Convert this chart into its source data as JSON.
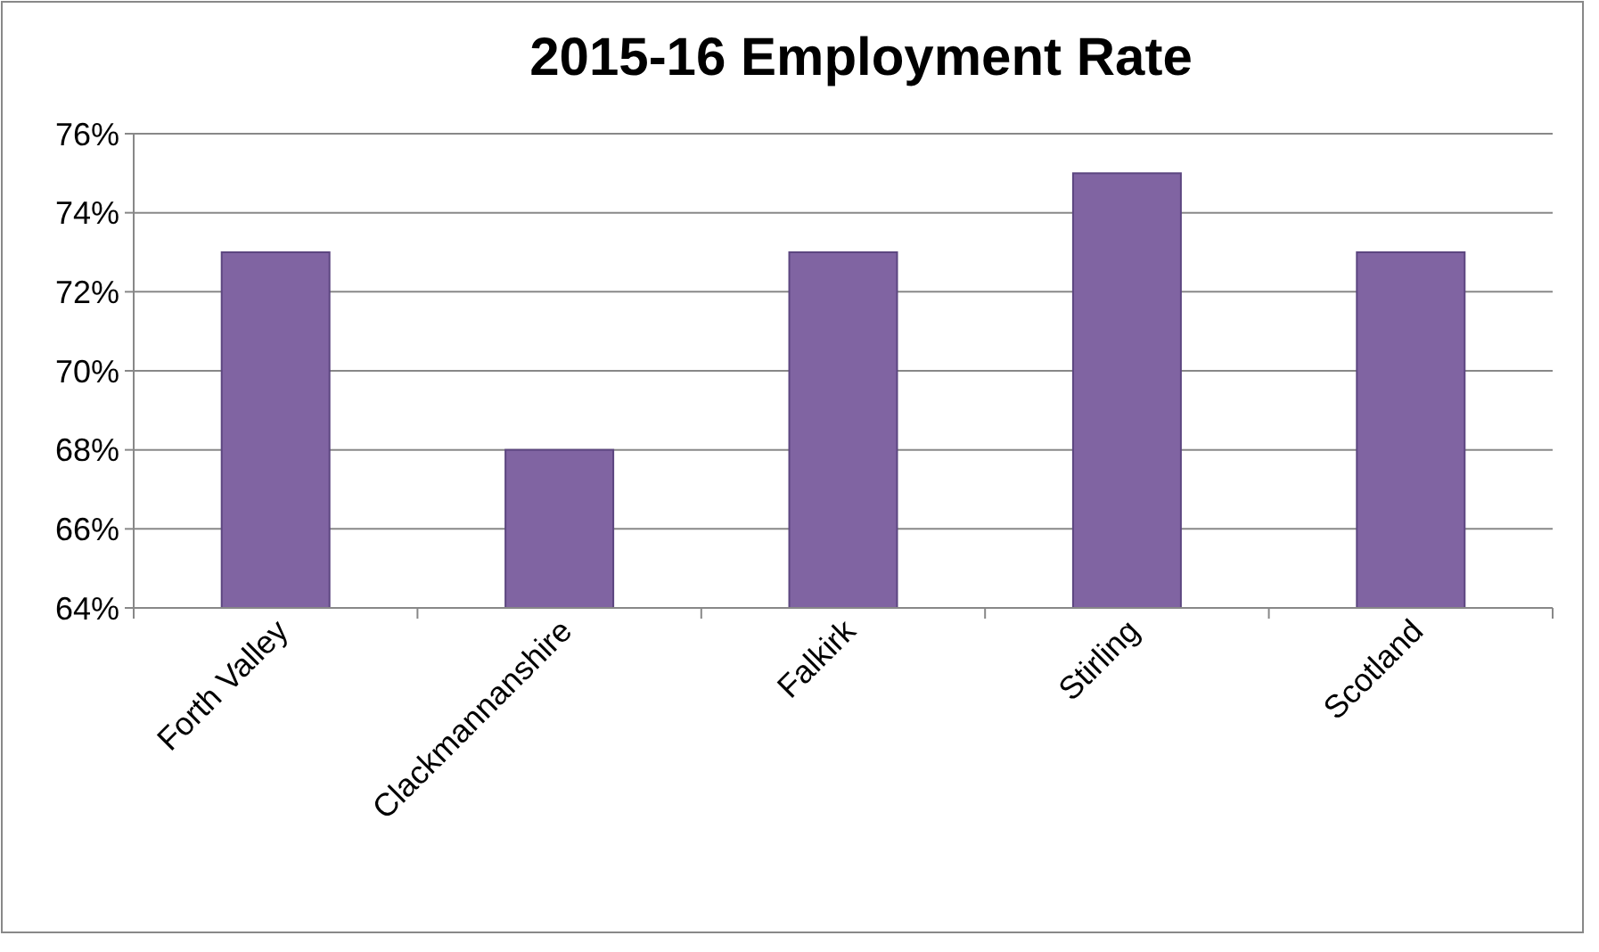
{
  "chart_data": {
    "type": "bar",
    "title": "2015-16  Employment Rate",
    "categories": [
      "Forth Valley",
      "Clackmannanshire",
      "Falkirk",
      "Stirling",
      "Scotland"
    ],
    "values": [
      73,
      68,
      73,
      75,
      73
    ],
    "color": "#8064a2",
    "ylim": [
      64,
      76
    ],
    "yticks": [
      {
        "value": 64,
        "label": "64%"
      },
      {
        "value": 66,
        "label": "66%"
      },
      {
        "value": 68,
        "label": "68%"
      },
      {
        "value": 70,
        "label": "70%"
      },
      {
        "value": 72,
        "label": "72%"
      },
      {
        "value": 74,
        "label": "74%"
      },
      {
        "value": 76,
        "label": "76%"
      }
    ],
    "grid": "y"
  }
}
